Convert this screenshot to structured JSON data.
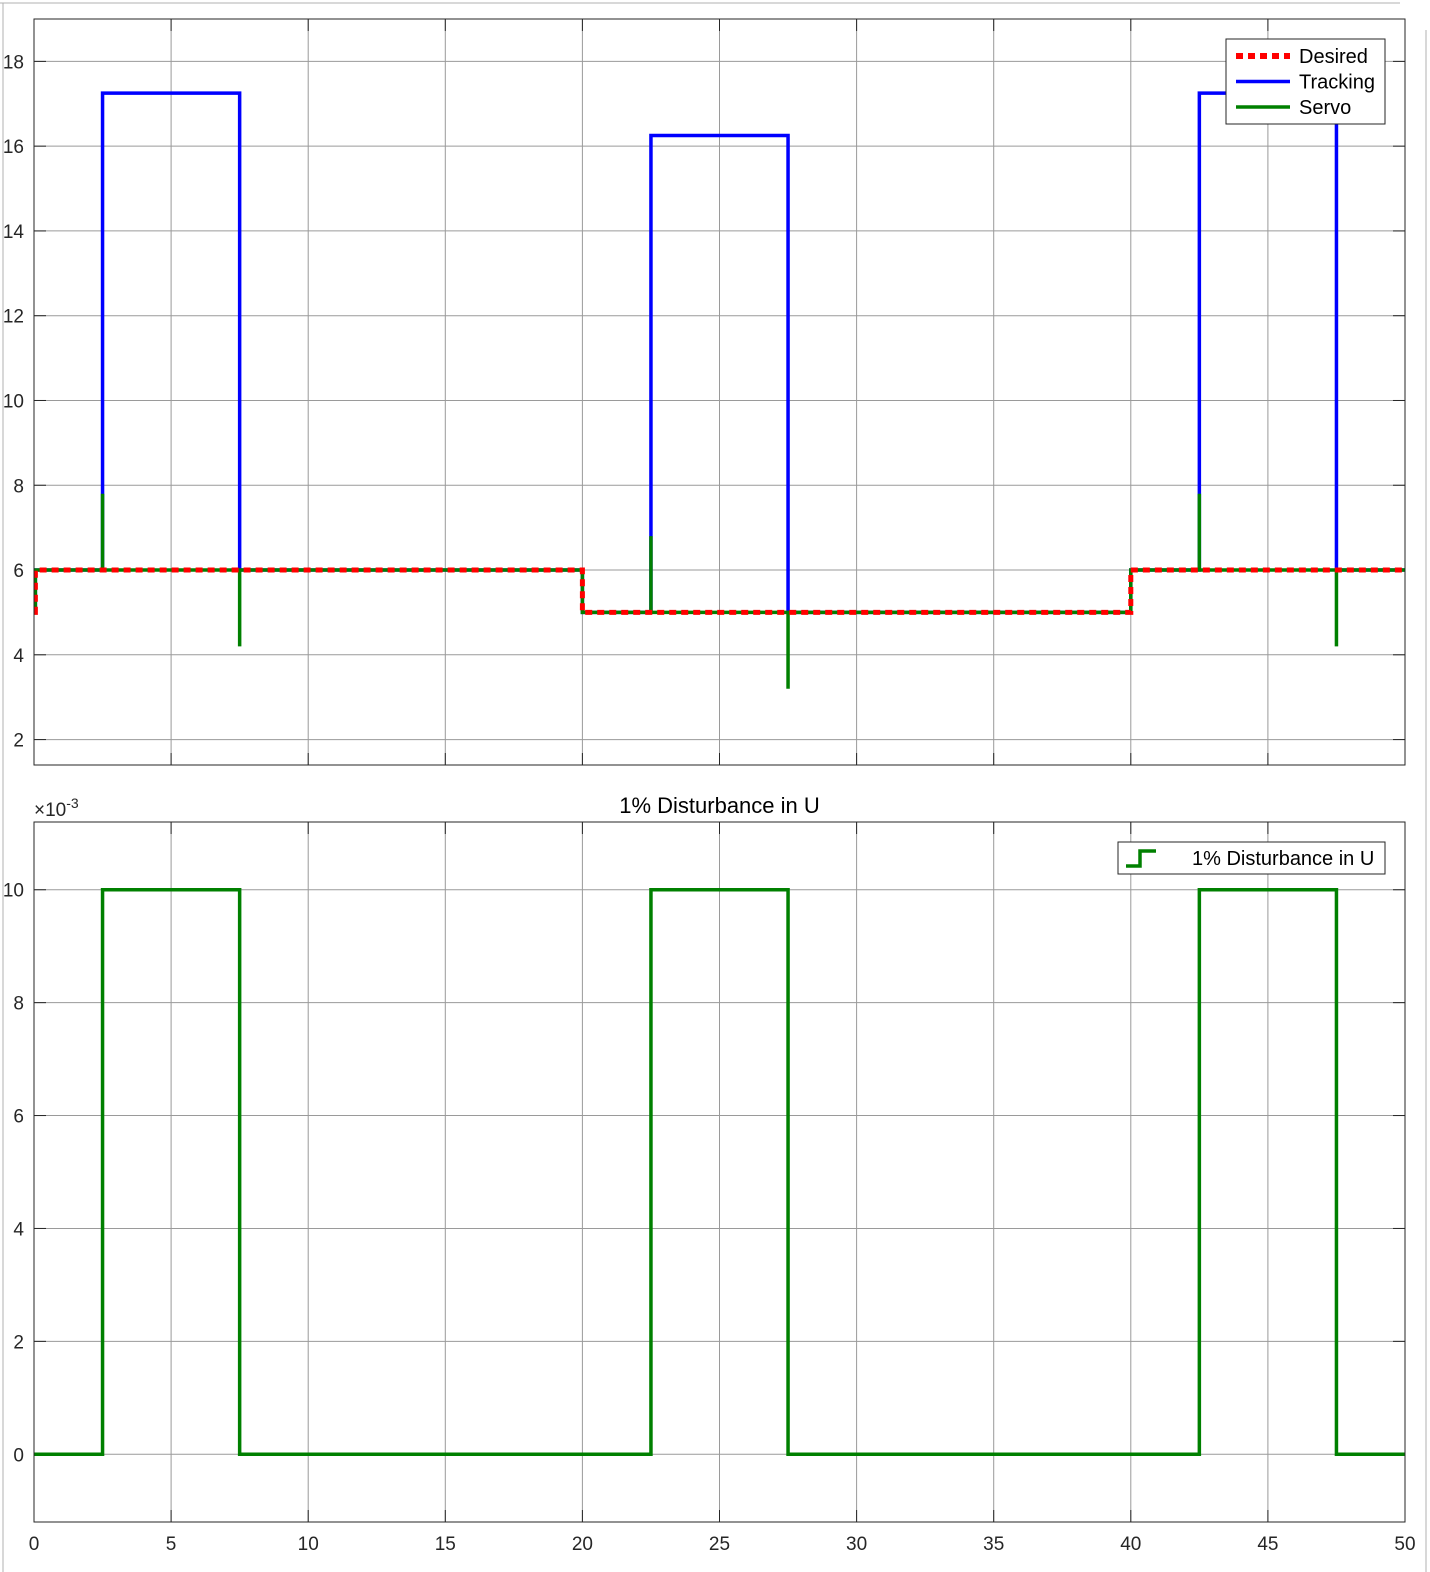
{
  "window": {
    "button_icon": "undock-icon"
  },
  "chart_data": [
    {
      "type": "line",
      "title": "",
      "xlabel": "",
      "ylabel": "",
      "xlim": [
        0,
        50
      ],
      "ylim": [
        1.4,
        19.0
      ],
      "xticks": [
        0,
        5,
        10,
        15,
        20,
        25,
        30,
        35,
        40,
        45,
        50
      ],
      "xtick_labels_visible": false,
      "yticks": [
        2,
        4,
        6,
        8,
        10,
        12,
        14,
        16,
        18
      ],
      "ytick_labels": [
        "2",
        "4",
        "6",
        "8",
        "10",
        "12",
        "14",
        "16",
        "18"
      ],
      "grid": true,
      "legend": {
        "position": "top-right"
      },
      "series": [
        {
          "name": "Desired",
          "color": "#ff0000",
          "style": "dotted",
          "x": [
            0,
            0.05,
            0.05,
            20,
            20,
            40,
            40,
            50
          ],
          "y": [
            5,
            5,
            6,
            6,
            5,
            5,
            6,
            6
          ]
        },
        {
          "name": "Tracking",
          "color": "#0000ff",
          "style": "solid",
          "x": [
            0,
            0.05,
            0.05,
            2.5,
            2.5,
            7.5,
            7.5,
            20,
            20,
            22.5,
            22.5,
            27.5,
            27.5,
            40,
            40,
            42.5,
            42.5,
            47.5,
            47.5,
            50
          ],
          "y": [
            5,
            5,
            6,
            6,
            17.25,
            17.25,
            6,
            6,
            5,
            5,
            16.25,
            16.25,
            5,
            5,
            6,
            6,
            17.25,
            17.25,
            6,
            6
          ]
        },
        {
          "name": "Servo",
          "color": "#008000",
          "style": "solid",
          "x": [
            0,
            0.05,
            0.05,
            2.5,
            2.5,
            2.5,
            7.5,
            7.5,
            7.5,
            20,
            20,
            22.5,
            22.5,
            22.5,
            27.5,
            27.5,
            27.5,
            40,
            40,
            42.5,
            42.5,
            42.5,
            47.5,
            47.5,
            47.5,
            50
          ],
          "y": [
            5,
            5,
            6,
            6,
            7.8,
            6,
            6,
            4.2,
            6,
            6,
            5,
            5,
            6.8,
            5,
            5,
            3.2,
            5,
            5,
            6,
            6,
            7.8,
            6,
            6,
            4.2,
            6,
            6
          ]
        }
      ]
    },
    {
      "type": "line",
      "title": "1% Disturbance in U",
      "xlabel": "",
      "ylabel": "",
      "xlim": [
        0,
        50
      ],
      "ylim": [
        -0.0012,
        0.0112
      ],
      "y_exponent_label": "×10",
      "y_exponent_power": "-3",
      "xticks": [
        0,
        5,
        10,
        15,
        20,
        25,
        30,
        35,
        40,
        45,
        50
      ],
      "xtick_labels": [
        "0",
        "5",
        "10",
        "15",
        "20",
        "25",
        "30",
        "35",
        "40",
        "45",
        "50"
      ],
      "yticks": [
        0,
        0.002,
        0.004,
        0.006,
        0.008,
        0.01
      ],
      "ytick_labels": [
        "0",
        "2",
        "4",
        "6",
        "8",
        "10"
      ],
      "grid": true,
      "legend": {
        "position": "top-right"
      },
      "series": [
        {
          "name": "1% Disturbance in U",
          "color": "#008000",
          "style": "stairs",
          "x": [
            0,
            2.5,
            2.5,
            7.5,
            7.5,
            22.5,
            22.5,
            27.5,
            27.5,
            42.5,
            42.5,
            47.5,
            47.5,
            50
          ],
          "y": [
            0,
            0,
            0.01,
            0.01,
            0,
            0,
            0.01,
            0.01,
            0,
            0,
            0.01,
            0.01,
            0,
            0
          ]
        }
      ]
    }
  ]
}
